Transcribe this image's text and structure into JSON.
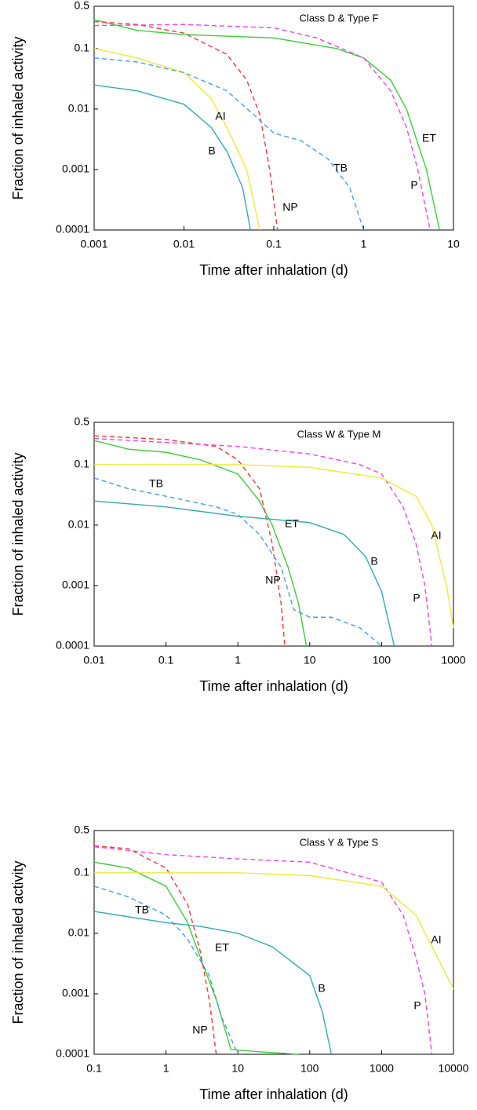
{
  "chart_data": [
    {
      "type": "line",
      "title": "Class D & Type F",
      "xlabel": "Time after inhalation (d)",
      "ylabel": "Fraction of inhaled activity",
      "xscale": "log",
      "yscale": "log",
      "xlim": [
        0.001,
        10
      ],
      "ylim": [
        0.0001,
        0.5
      ],
      "xticks": [
        0.001,
        0.01,
        0.1,
        1,
        10
      ],
      "yticks": [
        0.0001,
        0.001,
        0.01,
        0.1,
        0.5
      ],
      "series": [
        {
          "name": "ET",
          "color": "#3ccc3c",
          "dashed": false,
          "x": [
            0.001,
            0.003,
            0.01,
            0.1,
            0.5,
            1,
            2,
            3,
            5,
            7
          ],
          "values": [
            0.3,
            0.2,
            0.17,
            0.15,
            0.1,
            0.07,
            0.03,
            0.01,
            0.001,
            0.0001
          ]
        },
        {
          "name": "NP",
          "color": "#ee3a3a",
          "dashed": true,
          "x": [
            0.001,
            0.003,
            0.01,
            0.03,
            0.05,
            0.07,
            0.09,
            0.11
          ],
          "values": [
            0.28,
            0.25,
            0.18,
            0.08,
            0.03,
            0.008,
            0.001,
            0.0001
          ]
        },
        {
          "name": "P",
          "color": "#ee44ee",
          "dashed": true,
          "x": [
            0.001,
            0.01,
            0.1,
            0.3,
            1,
            2,
            3,
            4,
            5.5
          ],
          "values": [
            0.24,
            0.25,
            0.22,
            0.15,
            0.07,
            0.02,
            0.005,
            0.001,
            0.0001
          ]
        },
        {
          "name": "AI",
          "color": "#eeea3a",
          "dashed": false,
          "x": [
            0.001,
            0.003,
            0.01,
            0.02,
            0.03,
            0.05,
            0.07
          ],
          "values": [
            0.1,
            0.07,
            0.04,
            0.015,
            0.005,
            0.001,
            0.0001
          ]
        },
        {
          "name": "TB",
          "color": "#4a9ee0",
          "dashed": true,
          "x": [
            0.001,
            0.003,
            0.01,
            0.03,
            0.06,
            0.1,
            0.2,
            0.4,
            0.7,
            1
          ],
          "values": [
            0.07,
            0.06,
            0.04,
            0.02,
            0.008,
            0.004,
            0.003,
            0.0015,
            0.0005,
            0.0001
          ]
        },
        {
          "name": "B",
          "color": "#33aab0",
          "dashed": false,
          "x": [
            0.001,
            0.003,
            0.01,
            0.02,
            0.03,
            0.045,
            0.055
          ],
          "values": [
            0.025,
            0.02,
            0.012,
            0.005,
            0.002,
            0.0005,
            0.0001
          ]
        }
      ]
    },
    {
      "type": "line",
      "title": "Class W & Type M",
      "xlabel": "Time after inhalation (d)",
      "ylabel": "Fraction of inhaled activity",
      "xscale": "log",
      "yscale": "log",
      "xlim": [
        0.01,
        1000
      ],
      "ylim": [
        0.0001,
        0.5
      ],
      "xticks": [
        0.01,
        0.1,
        1,
        10,
        100,
        1000
      ],
      "yticks": [
        0.0001,
        0.001,
        0.01,
        0.1,
        0.5
      ],
      "series": [
        {
          "name": "ET",
          "color": "#3ccc3c",
          "dashed": false,
          "x": [
            0.01,
            0.03,
            0.1,
            0.3,
            1,
            2,
            3,
            5,
            7,
            9
          ],
          "values": [
            0.25,
            0.18,
            0.16,
            0.12,
            0.07,
            0.025,
            0.01,
            0.002,
            0.0005,
            0.0001
          ]
        },
        {
          "name": "NP",
          "color": "#ee3a3a",
          "dashed": true,
          "x": [
            0.01,
            0.1,
            0.5,
            1,
            2,
            3,
            4,
            4.5
          ],
          "values": [
            0.3,
            0.26,
            0.2,
            0.12,
            0.04,
            0.005,
            0.0005,
            0.0001
          ]
        },
        {
          "name": "P",
          "color": "#ee44ee",
          "dashed": true,
          "x": [
            0.01,
            1,
            10,
            50,
            100,
            200,
            300,
            400,
            500
          ],
          "values": [
            0.27,
            0.2,
            0.15,
            0.1,
            0.07,
            0.02,
            0.005,
            0.001,
            0.0001
          ]
        },
        {
          "name": "AI",
          "color": "#eeea3a",
          "dashed": false,
          "x": [
            0.01,
            1,
            10,
            100,
            300,
            500,
            800,
            1000
          ],
          "values": [
            0.1,
            0.1,
            0.09,
            0.06,
            0.03,
            0.01,
            0.001,
            0.0002
          ]
        },
        {
          "name": "TB",
          "color": "#4a9ee0",
          "dashed": true,
          "x": [
            0.01,
            0.03,
            0.1,
            0.5,
            1,
            2,
            4,
            6,
            10,
            20,
            50,
            100
          ],
          "values": [
            0.06,
            0.04,
            0.03,
            0.02,
            0.015,
            0.007,
            0.002,
            0.0004,
            0.0003,
            0.0003,
            0.0002,
            0.0001
          ]
        },
        {
          "name": "B",
          "color": "#33aab0",
          "dashed": false,
          "x": [
            0.01,
            0.1,
            1,
            10,
            30,
            60,
            100,
            150
          ],
          "values": [
            0.025,
            0.02,
            0.014,
            0.011,
            0.007,
            0.003,
            0.0008,
            0.0001
          ]
        }
      ]
    },
    {
      "type": "line",
      "title": "Class Y & Type S",
      "xlabel": "Time after inhalation (d)",
      "ylabel": "Fraction of inhaled activity",
      "xscale": "log",
      "yscale": "log",
      "xlim": [
        0.1,
        10000
      ],
      "ylim": [
        0.0001,
        0.5
      ],
      "xticks": [
        0.1,
        1,
        10,
        100,
        1000,
        10000
      ],
      "yticks": [
        0.0001,
        0.001,
        0.01,
        0.1,
        0.5
      ],
      "series": [
        {
          "name": "ET",
          "color": "#3ccc3c",
          "dashed": false,
          "x": [
            0.1,
            0.3,
            1,
            2,
            3,
            5,
            8,
            20,
            70
          ],
          "values": [
            0.15,
            0.12,
            0.06,
            0.015,
            0.004,
            0.0008,
            0.00012,
            0.00011,
            0.0001
          ]
        },
        {
          "name": "NP",
          "color": "#ee3a3a",
          "dashed": true,
          "x": [
            0.1,
            0.3,
            1,
            2,
            3,
            4,
            5
          ],
          "values": [
            0.28,
            0.25,
            0.12,
            0.03,
            0.005,
            0.0008,
            0.0001
          ]
        },
        {
          "name": "P",
          "color": "#ee44ee",
          "dashed": true,
          "x": [
            0.1,
            1,
            10,
            100,
            1000,
            2000,
            3000,
            4000,
            5000
          ],
          "values": [
            0.27,
            0.2,
            0.17,
            0.15,
            0.07,
            0.02,
            0.004,
            0.001,
            0.0001
          ]
        },
        {
          "name": "AI",
          "color": "#eeea3a",
          "dashed": false,
          "x": [
            0.1,
            10,
            100,
            1000,
            3000,
            10000
          ],
          "values": [
            0.1,
            0.1,
            0.09,
            0.06,
            0.02,
            0.0012
          ]
        },
        {
          "name": "TB",
          "color": "#4a9ee0",
          "dashed": true,
          "x": [
            0.1,
            0.3,
            1,
            2,
            4,
            6,
            10
          ],
          "values": [
            0.06,
            0.04,
            0.02,
            0.008,
            0.002,
            0.0004,
            0.0001
          ]
        },
        {
          "name": "B",
          "color": "#33aab0",
          "dashed": false,
          "x": [
            0.1,
            1,
            3,
            10,
            30,
            100,
            150,
            200
          ],
          "values": [
            0.023,
            0.015,
            0.013,
            0.01,
            0.006,
            0.002,
            0.0005,
            0.0001
          ]
        }
      ]
    }
  ]
}
